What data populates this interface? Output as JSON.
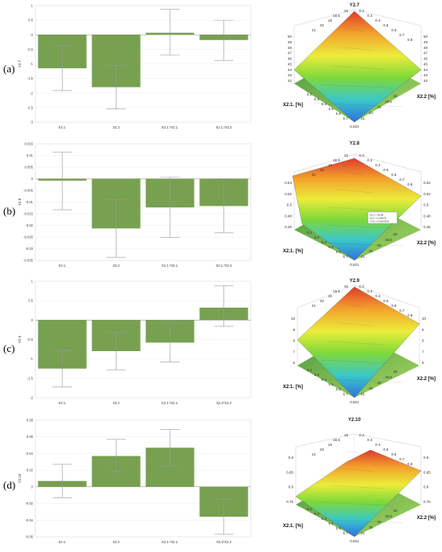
{
  "panel_labels": [
    "(a)",
    "(b)",
    "(c)",
    "(d)"
  ],
  "chart_data": [
    {
      "type": "bar",
      "ylabel": "Y2.7",
      "ylim": [
        -3,
        1
      ],
      "yticks": [
        1,
        0.5,
        0,
        -0.5,
        -1,
        -1.5,
        -2,
        -2.5,
        -3
      ],
      "categories": [
        "X2.1.",
        "X2.2",
        "X2.1.*X2.1.",
        "X2.1.*X2.2"
      ],
      "values": [
        -1.15,
        -1.8,
        0.07,
        -0.18
      ],
      "error_low": [
        -1.92,
        -2.55,
        -0.7,
        -0.88
      ],
      "error_high": [
        -0.38,
        -1.05,
        0.87,
        0.5
      ],
      "bar_color": "#77a050"
    },
    {
      "type": "bar",
      "ylabel": "Y2.8",
      "ylim": [
        -0.035,
        0.015
      ],
      "yticks": [
        0.015,
        0.01,
        0.005,
        0,
        -0.005,
        -0.01,
        -0.015,
        -0.02,
        -0.025,
        -0.03,
        -0.035
      ],
      "categories": [
        "X2.1.",
        "X2.2",
        "X2.1.*X2.1.",
        "X2.1.*X2.2"
      ],
      "values": [
        -0.0008,
        -0.0213,
        -0.0123,
        -0.0117
      ],
      "error_low": [
        -0.0133,
        -0.0337,
        -0.0252,
        -0.0232
      ],
      "error_high": [
        0.0115,
        -0.0089,
        0.0006,
        0
      ],
      "bar_color": "#77a050"
    },
    {
      "type": "bar",
      "ylabel": "Y2.9",
      "ylim": [
        -2,
        1
      ],
      "yticks": [
        1,
        0.5,
        0,
        -0.5,
        -1,
        -1.5,
        -2
      ],
      "categories": [
        "X2.1.",
        "X2.2",
        "X2.1.*X2.1.",
        "X2.2*X2.2"
      ],
      "values": [
        -1.25,
        -0.8,
        -0.58,
        0.32
      ],
      "error_low": [
        -1.72,
        -1.28,
        -1.08,
        -0.16
      ],
      "error_high": [
        -0.78,
        -0.32,
        -0.08,
        0.88
      ],
      "bar_color": "#77a050"
    },
    {
      "type": "bar",
      "ylabel": "Y2.10",
      "ylim": [
        -0.06,
        0.08
      ],
      "yticks": [
        0.08,
        0.06,
        0.04,
        0.02,
        0,
        -0.02,
        -0.04,
        -0.06
      ],
      "categories": [
        "X2.1.",
        "X2.2",
        "X2.1.*X2.1.",
        "X2.2*X2.2"
      ],
      "values": [
        0.007,
        0.037,
        0.047,
        -0.036
      ],
      "error_low": [
        -0.013,
        0.018,
        0.025,
        -0.057
      ],
      "error_high": [
        0.027,
        0.057,
        0.069,
        -0.015
      ],
      "bar_color": "#77a050"
    }
  ],
  "surfaces": [
    {
      "title": "Y2.7",
      "x_label": "X2.1. [%]",
      "y_label": "X2.2 [%]",
      "z_ticks": [
        "50",
        "49",
        "48",
        "47",
        "46",
        "45",
        "44",
        "43",
        "42"
      ],
      "x_ticks": [
        "0.7",
        "0.6",
        "0.5",
        "0.4",
        "0.3",
        "0.2"
      ],
      "y_ticks": [
        "21",
        "20",
        "19",
        "18.5",
        "18"
      ],
      "top_back_ticks": [
        "18",
        "18.5",
        "19",
        "20",
        "21"
      ],
      "top_right_ticks": [
        "0.2",
        "0.3",
        "0.4",
        "0.5",
        "0.6",
        "0.7",
        "0.8"
      ],
      "bottom_label": "0.821",
      "colors": [
        "#e03a2a",
        "#f2a22c",
        "#ecec3a",
        "#7ed83a",
        "#3ac8c8",
        "#2f6fe0"
      ]
    },
    {
      "title": "Y2.8",
      "x_label": "X2.1. [%]",
      "y_label": "X2.2 [%]",
      "z_ticks": [
        "0.54",
        "0.52",
        "0.5",
        "0.48",
        "0.46"
      ],
      "x_ticks": [
        "0.7",
        "0.6",
        "0.5",
        "0.4",
        "0.3",
        "0.2"
      ],
      "y_ticks": [
        "21",
        "20",
        "19",
        "18.5",
        "18"
      ],
      "top_back_ticks": [
        "18",
        "18.5",
        "19",
        "20",
        "21"
      ],
      "top_right_ticks": [
        "0.2",
        "0.3",
        "0.4",
        "0.5",
        "0.6",
        "0.7",
        "0.8"
      ],
      "bottom_label": "0.821",
      "legend": [
        "X2.1 = 18.85",
        "X2.2 = 0.83875",
        "Y2.8 = 0.5144704"
      ],
      "colors": [
        "#e03a2a",
        "#f2a22c",
        "#ecec3a",
        "#7ed83a",
        "#3ac8c8",
        "#2f6fe0"
      ]
    },
    {
      "title": "Y2.9",
      "x_label": "X2.1. [%]",
      "y_label": "X2.2 [%]",
      "z_ticks": [
        "10",
        "9",
        "8",
        "7",
        "6"
      ],
      "x_ticks": [
        "0.7",
        "0.6",
        "0.5",
        "0.4",
        "0.3",
        "0.2"
      ],
      "y_ticks": [
        "21",
        "20",
        "19",
        "18.5",
        "18"
      ],
      "top_back_ticks": [
        "18",
        "18.5",
        "19",
        "20",
        "21"
      ],
      "top_right_ticks": [
        "0.2",
        "0.3",
        "0.4",
        "0.5",
        "0.6",
        "0.7",
        "0.8"
      ],
      "bottom_label": "0.821",
      "colors": [
        "#e03a2a",
        "#f2a22c",
        "#ecec3a",
        "#7ed83a",
        "#3ac8c8",
        "#2f6fe0"
      ]
    },
    {
      "title": "Y2.10",
      "x_label": "X2.1. [%]",
      "y_label": "X2.2 [%]",
      "z_ticks": [
        "0.9",
        "0.85",
        "0.8",
        "0.75"
      ],
      "x_ticks": [
        "0.7",
        "0.6",
        "0.5",
        "0.4",
        "0.3",
        "0.2"
      ],
      "y_ticks": [
        "21",
        "20",
        "19",
        "18.5",
        "18"
      ],
      "top_back_ticks": [
        "18",
        "18.5",
        "19",
        "20",
        "21"
      ],
      "top_right_ticks": [
        "0.2",
        "0.3",
        "0.4",
        "0.5",
        "0.6",
        "0.7",
        "0.8"
      ],
      "bottom_label": "0.821",
      "colors": [
        "#e03a2a",
        "#f2a22c",
        "#ecec3a",
        "#7ed83a",
        "#3ac8c8",
        "#2f6fe0"
      ]
    }
  ]
}
